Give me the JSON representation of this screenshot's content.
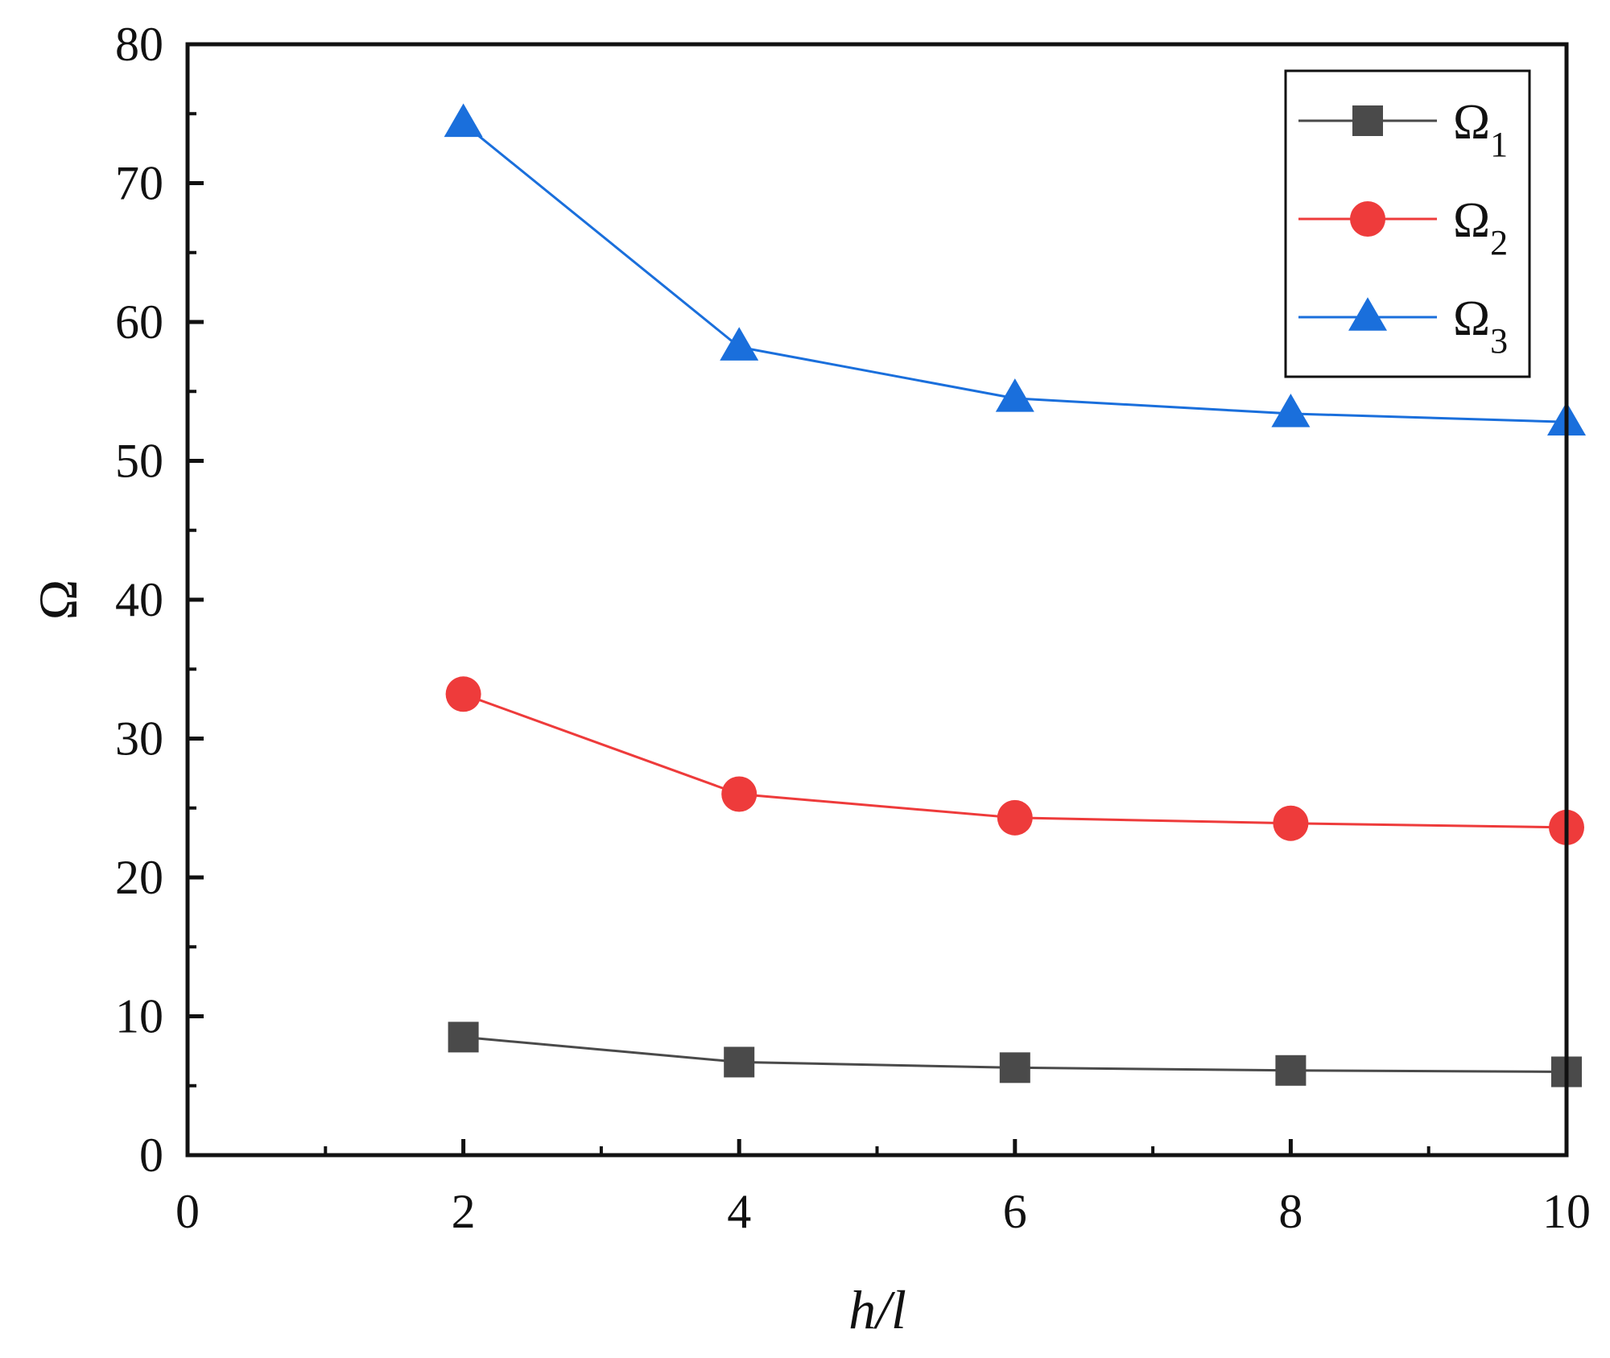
{
  "chart_data": {
    "type": "line",
    "title": "",
    "xlabel": "h/l",
    "ylabel": "Ω",
    "xlim": [
      0,
      10
    ],
    "ylim": [
      0,
      80
    ],
    "xticks": [
      0,
      2,
      4,
      6,
      8,
      10
    ],
    "yticks": [
      0,
      10,
      20,
      30,
      40,
      50,
      60,
      70,
      80
    ],
    "x": [
      2,
      4,
      6,
      8,
      10
    ],
    "series": [
      {
        "name": "Ω",
        "subscript": "1",
        "marker": "square",
        "color": "#4a4a4a",
        "values": [
          8.5,
          6.7,
          6.3,
          6.1,
          6.0
        ]
      },
      {
        "name": "Ω",
        "subscript": "2",
        "marker": "circle",
        "color": "#ee3b3b",
        "values": [
          33.2,
          26.0,
          24.3,
          23.9,
          23.6
        ]
      },
      {
        "name": "Ω",
        "subscript": "3",
        "marker": "triangle",
        "color": "#1a6fdc",
        "values": [
          74.3,
          58.2,
          54.5,
          53.4,
          52.8
        ]
      }
    ],
    "legend": "top-right",
    "grid": false
  }
}
